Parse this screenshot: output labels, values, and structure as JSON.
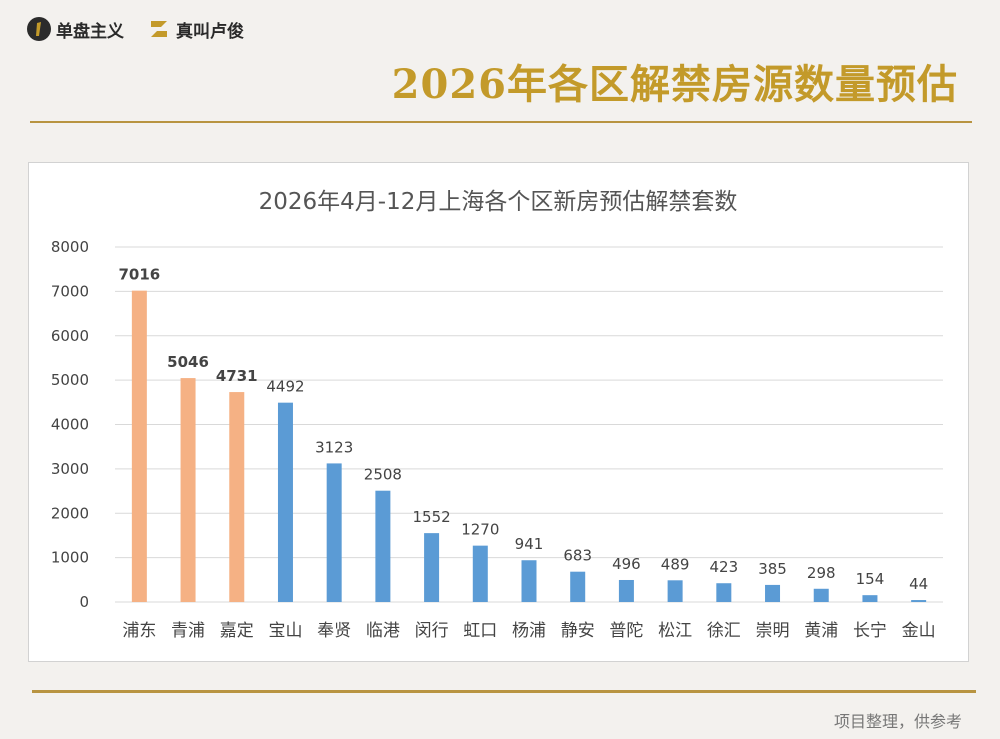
{
  "header": {
    "brand_primary": "单盘主义",
    "brand_secondary": "真叫卢俊",
    "page_title": "2026年各区解禁房源数量预估"
  },
  "footer": {
    "note": "项目整理，供参考"
  },
  "colors": {
    "highlight_bar": "#f5b184",
    "normal_bar": "#5b9bd5",
    "accent_gold": "#c39a2a",
    "rule": "#b89441",
    "grid": "#d9d9d9"
  },
  "chart_data": {
    "type": "bar",
    "title": "2026年4月-12月上海各个区新房预估解禁套数",
    "xlabel": "",
    "ylabel": "",
    "ylim": [
      0,
      8000
    ],
    "yticks": [
      0,
      1000,
      2000,
      3000,
      4000,
      5000,
      6000,
      7000,
      8000
    ],
    "grid": true,
    "categories": [
      "浦东",
      "青浦",
      "嘉定",
      "宝山",
      "奉贤",
      "临港",
      "闵行",
      "虹口",
      "杨浦",
      "静安",
      "普陀",
      "松江",
      "徐汇",
      "崇明",
      "黄浦",
      "长宁",
      "金山"
    ],
    "values": [
      7016,
      5046,
      4731,
      4492,
      3123,
      2508,
      1552,
      1270,
      941,
      683,
      496,
      489,
      423,
      385,
      298,
      154,
      44
    ],
    "highlighted": [
      "浦东",
      "青浦",
      "嘉定"
    ]
  }
}
